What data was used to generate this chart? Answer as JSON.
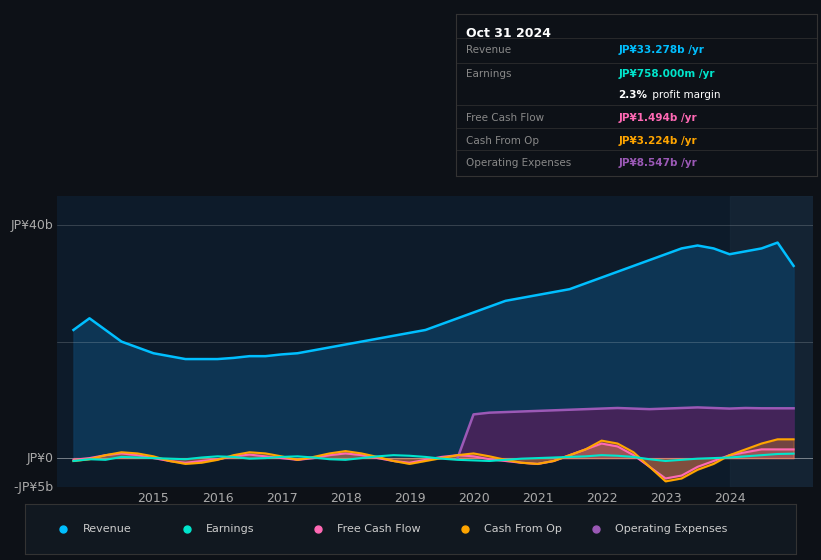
{
  "bg_color": "#0d1117",
  "plot_bg_color": "#0d1b2a",
  "title": "Oct 31 2024",
  "tooltip_rows": [
    {
      "label": "Revenue",
      "value": "JP¥33.278b /yr",
      "value_color": "#00bfff"
    },
    {
      "label": "Earnings",
      "value": "JP¥758.000m /yr",
      "value_color": "#00e5cc"
    },
    {
      "label": "",
      "value": "2.3% profit margin",
      "value_color": "#ffffff"
    },
    {
      "label": "Free Cash Flow",
      "value": "JP¥1.494b /yr",
      "value_color": "#ff69b4"
    },
    {
      "label": "Cash From Op",
      "value": "JP¥3.224b /yr",
      "value_color": "#ffa500"
    },
    {
      "label": "Operating Expenses",
      "value": "JP¥8.547b /yr",
      "value_color": "#9b59b6"
    }
  ],
  "ylabel_top": "JP¥40b",
  "ylabel_zero": "JP¥0",
  "ylabel_neg": "-JP¥5b",
  "ylim": [
    -5,
    45
  ],
  "xlim": [
    2013.5,
    2025.3
  ],
  "x_ticks": [
    2015,
    2016,
    2017,
    2018,
    2019,
    2020,
    2021,
    2022,
    2023,
    2024
  ],
  "legend_items": [
    {
      "label": "Revenue",
      "color": "#00bfff"
    },
    {
      "label": "Earnings",
      "color": "#00e5cc"
    },
    {
      "label": "Free Cash Flow",
      "color": "#ff69b4"
    },
    {
      "label": "Cash From Op",
      "color": "#ffa500"
    },
    {
      "label": "Operating Expenses",
      "color": "#9b59b6"
    }
  ],
  "revenue": {
    "x": [
      2013.75,
      2014.0,
      2014.25,
      2014.5,
      2014.75,
      2015.0,
      2015.25,
      2015.5,
      2015.75,
      2016.0,
      2016.25,
      2016.5,
      2016.75,
      2017.0,
      2017.25,
      2017.5,
      2017.75,
      2018.0,
      2018.25,
      2018.5,
      2018.75,
      2019.0,
      2019.25,
      2019.5,
      2019.75,
      2020.0,
      2020.25,
      2020.5,
      2020.75,
      2021.0,
      2021.25,
      2021.5,
      2021.75,
      2022.0,
      2022.25,
      2022.5,
      2022.75,
      2023.0,
      2023.25,
      2023.5,
      2023.75,
      2024.0,
      2024.25,
      2024.5,
      2024.75,
      2025.0
    ],
    "y": [
      22,
      24,
      22,
      20,
      19,
      18,
      17.5,
      17,
      17,
      17,
      17.2,
      17.5,
      17.5,
      17.8,
      18,
      18.5,
      19,
      19.5,
      20,
      20.5,
      21,
      21.5,
      22,
      23,
      24,
      25,
      26,
      27,
      27.5,
      28,
      28.5,
      29,
      30,
      31,
      32,
      33,
      34,
      35,
      36,
      36.5,
      36,
      35,
      35.5,
      36,
      37,
      33
    ],
    "color": "#00bfff",
    "fill_color": "#0d3a5c",
    "lw": 1.8
  },
  "earnings": {
    "x": [
      2013.75,
      2014.0,
      2014.25,
      2014.5,
      2014.75,
      2015.0,
      2015.25,
      2015.5,
      2015.75,
      2016.0,
      2016.25,
      2016.5,
      2016.75,
      2017.0,
      2017.25,
      2017.5,
      2017.75,
      2018.0,
      2018.25,
      2018.5,
      2018.75,
      2019.0,
      2019.25,
      2019.5,
      2019.75,
      2020.0,
      2020.25,
      2020.5,
      2020.75,
      2021.0,
      2021.25,
      2021.5,
      2021.75,
      2022.0,
      2022.25,
      2022.5,
      2022.75,
      2023.0,
      2023.25,
      2023.5,
      2023.75,
      2024.0,
      2024.25,
      2024.5,
      2024.75,
      2025.0
    ],
    "y": [
      -0.5,
      -0.2,
      -0.3,
      0.2,
      0.1,
      0.0,
      -0.1,
      -0.2,
      0.1,
      0.3,
      0.2,
      -0.1,
      0.0,
      0.2,
      0.3,
      0.1,
      -0.2,
      -0.3,
      0.0,
      0.3,
      0.5,
      0.4,
      0.2,
      -0.1,
      -0.3,
      -0.4,
      -0.5,
      -0.3,
      -0.1,
      0.0,
      0.1,
      0.2,
      0.3,
      0.5,
      0.4,
      0.2,
      -0.2,
      -0.5,
      -0.3,
      -0.1,
      0.0,
      0.1,
      0.3,
      0.5,
      0.7,
      0.758
    ],
    "color": "#00e5cc",
    "lw": 1.5
  },
  "free_cash_flow": {
    "x": [
      2013.75,
      2014.0,
      2014.25,
      2014.5,
      2014.75,
      2015.0,
      2015.25,
      2015.5,
      2015.75,
      2016.0,
      2016.25,
      2016.5,
      2016.75,
      2017.0,
      2017.25,
      2017.5,
      2017.75,
      2018.0,
      2018.25,
      2018.5,
      2018.75,
      2019.0,
      2019.25,
      2019.5,
      2019.75,
      2020.0,
      2020.25,
      2020.5,
      2020.75,
      2021.0,
      2021.25,
      2021.5,
      2021.75,
      2022.0,
      2022.25,
      2022.5,
      2022.75,
      2023.0,
      2023.25,
      2023.5,
      2023.75,
      2024.0,
      2024.25,
      2024.5,
      2024.75,
      2025.0
    ],
    "y": [
      -0.3,
      0.0,
      0.5,
      0.8,
      0.5,
      0.0,
      -0.5,
      -0.8,
      -0.5,
      -0.2,
      0.3,
      0.6,
      0.3,
      0.0,
      -0.3,
      0.0,
      0.5,
      0.8,
      0.5,
      0.0,
      -0.5,
      -0.8,
      -0.3,
      0.2,
      0.5,
      0.3,
      -0.2,
      -0.5,
      -0.8,
      -1.0,
      -0.5,
      0.5,
      1.5,
      2.5,
      2.0,
      0.5,
      -1.5,
      -3.5,
      -3.0,
      -1.5,
      -0.5,
      0.5,
      1.0,
      1.5,
      1.494,
      1.494
    ],
    "color": "#ff69b4",
    "lw": 1.5
  },
  "cash_from_op": {
    "x": [
      2013.75,
      2014.0,
      2014.25,
      2014.5,
      2014.75,
      2015.0,
      2015.25,
      2015.5,
      2015.75,
      2016.0,
      2016.25,
      2016.5,
      2016.75,
      2017.0,
      2017.25,
      2017.5,
      2017.75,
      2018.0,
      2018.25,
      2018.5,
      2018.75,
      2019.0,
      2019.25,
      2019.5,
      2019.75,
      2020.0,
      2020.25,
      2020.5,
      2020.75,
      2021.0,
      2021.25,
      2021.5,
      2021.75,
      2022.0,
      2022.25,
      2022.5,
      2022.75,
      2023.0,
      2023.25,
      2023.5,
      2023.75,
      2024.0,
      2024.25,
      2024.5,
      2024.75,
      2025.0
    ],
    "y": [
      -0.5,
      -0.2,
      0.5,
      1.0,
      0.8,
      0.3,
      -0.5,
      -1.0,
      -0.8,
      -0.3,
      0.5,
      1.0,
      0.8,
      0.3,
      -0.3,
      0.2,
      0.8,
      1.2,
      0.8,
      0.2,
      -0.5,
      -1.0,
      -0.5,
      0.0,
      0.5,
      0.8,
      0.3,
      -0.3,
      -0.8,
      -1.0,
      -0.5,
      0.5,
      1.5,
      3.0,
      2.5,
      1.0,
      -1.5,
      -4.0,
      -3.5,
      -2.0,
      -1.0,
      0.5,
      1.5,
      2.5,
      3.224,
      3.224
    ],
    "color": "#ffa500",
    "lw": 1.5
  },
  "operating_expenses": {
    "x": [
      2019.75,
      2020.0,
      2020.25,
      2020.5,
      2020.75,
      2021.0,
      2021.25,
      2021.5,
      2021.75,
      2022.0,
      2022.25,
      2022.5,
      2022.75,
      2023.0,
      2023.25,
      2023.5,
      2023.75,
      2024.0,
      2024.25,
      2024.5,
      2024.75,
      2025.0
    ],
    "y": [
      0.0,
      7.5,
      7.8,
      7.9,
      8.0,
      8.1,
      8.2,
      8.3,
      8.4,
      8.5,
      8.6,
      8.5,
      8.4,
      8.5,
      8.6,
      8.7,
      8.6,
      8.5,
      8.6,
      8.55,
      8.547,
      8.547
    ],
    "color": "#9b59b6",
    "fill_color": "#4a235a",
    "lw": 1.8
  },
  "forecast_start_x": 2024.0,
  "row_labels": [
    "Revenue",
    "Earnings",
    "",
    "Free Cash Flow",
    "Cash From Op",
    "Operating Expenses"
  ],
  "row_values": [
    "JP¥33.278b /yr",
    "JP¥758.000m /yr",
    "2.3% profit margin",
    "JP¥1.494b /yr",
    "JP¥3.224b /yr",
    "JP¥8.547b /yr"
  ],
  "row_colors": [
    "#00bfff",
    "#00e5cc",
    "#ffffff",
    "#ff69b4",
    "#ffa500",
    "#9b59b6"
  ]
}
